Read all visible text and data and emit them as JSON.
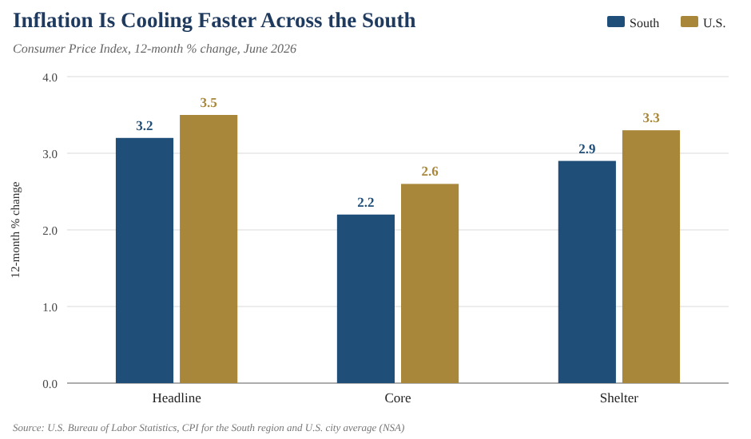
{
  "chart_data": {
    "type": "bar",
    "title": "Inflation Is Cooling Faster Across the South",
    "subtitle": "Consumer Price Index, 12-month % change, June 2026",
    "ylabel": "12-month % change",
    "categories": [
      "Headline",
      "Core",
      "Shelter"
    ],
    "series": [
      {
        "name": "South",
        "color": "#1f4e79",
        "values": [
          3.2,
          2.2,
          2.9
        ]
      },
      {
        "name": "U.S.",
        "color": "#a8873a",
        "values": [
          3.5,
          2.6,
          3.3
        ]
      }
    ],
    "ylim": [
      0,
      4
    ],
    "yticks": [
      {
        "value": 0,
        "label": "0.0"
      },
      {
        "value": 1,
        "label": "1.0"
      },
      {
        "value": 2,
        "label": "2.0"
      },
      {
        "value": 3,
        "label": "3.0"
      },
      {
        "value": 4,
        "label": "4.0"
      }
    ],
    "grid": "y",
    "legend": "top right",
    "data_labels": true,
    "annotations": [
      "Source: U.S. Bureau of Labor Statistics, CPI for the South region and U.S. city average (NSA)"
    ]
  }
}
